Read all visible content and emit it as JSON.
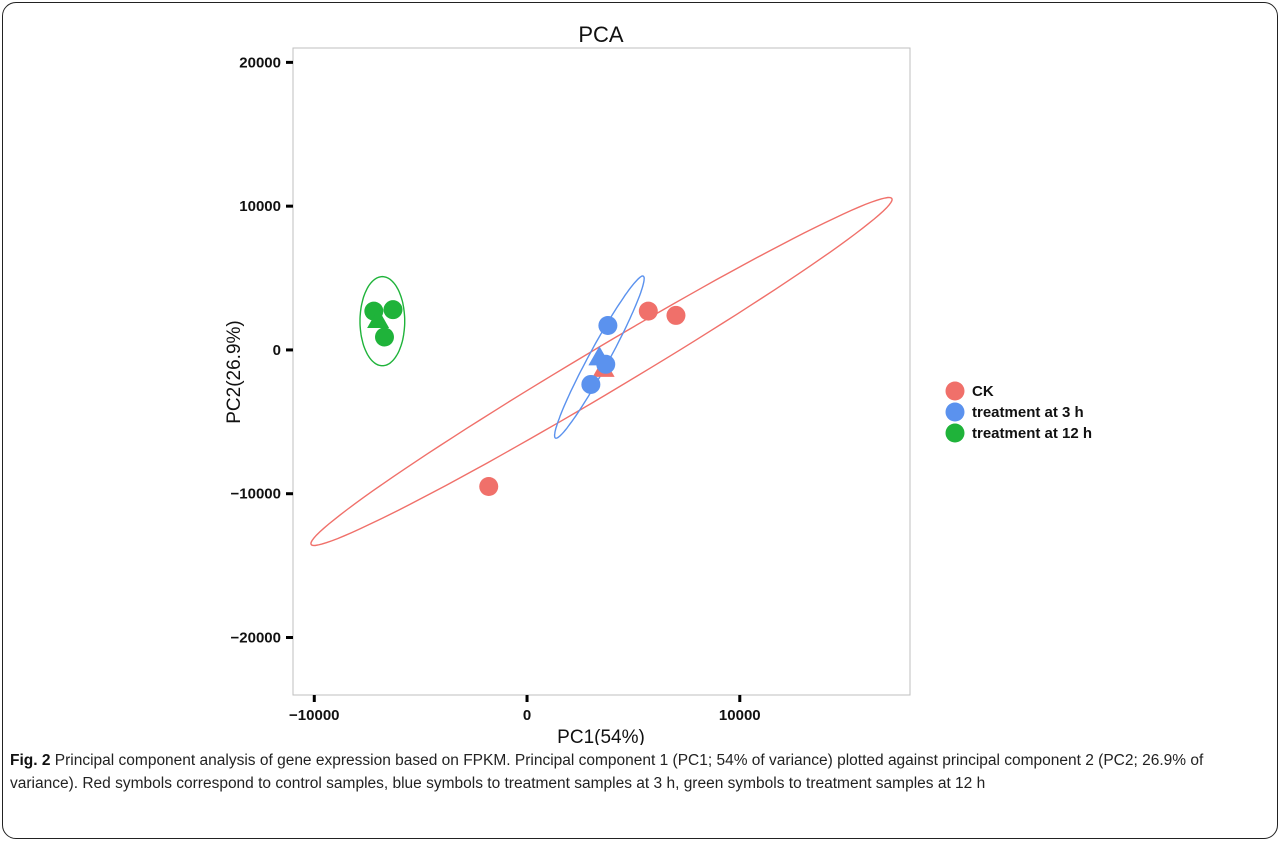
{
  "chart_data": {
    "type": "scatter",
    "title": "PCA",
    "xlabel": "PC1(54%)",
    "ylabel": "PC2(26.9%)",
    "xlim": [
      -11000,
      18000
    ],
    "ylim": [
      -24000,
      21000
    ],
    "xticks": [
      -10000,
      0,
      10000
    ],
    "xtick_labels": [
      "−10000",
      "0",
      "10000"
    ],
    "yticks": [
      -20000,
      -10000,
      0,
      10000,
      20000
    ],
    "ytick_labels": [
      "−20000",
      "−10000",
      "0",
      "10000",
      "20000"
    ],
    "grid": false,
    "legend_position": "right",
    "series": [
      {
        "name": "CK",
        "color": "#f0706a",
        "points": [
          {
            "x": 5700,
            "y": 2700,
            "shape": "circle"
          },
          {
            "x": 7000,
            "y": 2400,
            "shape": "circle"
          },
          {
            "x": -1800,
            "y": -9500,
            "shape": "circle"
          },
          {
            "x": 3600,
            "y": -1300,
            "shape": "triangle"
          }
        ],
        "ellipse": {
          "cx": 3500,
          "cy": -1500,
          "rx": 18200,
          "ry": 1350,
          "angle_deg": 41.5
        }
      },
      {
        "name": "treatment at 3 h",
        "color": "#5b92ee",
        "points": [
          {
            "x": 3800,
            "y": 1700,
            "shape": "circle"
          },
          {
            "x": 3400,
            "y": -500,
            "shape": "triangle"
          },
          {
            "x": 3700,
            "y": -1000,
            "shape": "circle"
          },
          {
            "x": 3000,
            "y": -2400,
            "shape": "circle"
          }
        ],
        "ellipse": {
          "cx": 3400,
          "cy": -500,
          "rx": 6000,
          "ry": 500,
          "angle_deg": 70
        }
      },
      {
        "name": "treatment at 12 h",
        "color": "#1fb33a",
        "points": [
          {
            "x": -7200,
            "y": 2700,
            "shape": "circle"
          },
          {
            "x": -6300,
            "y": 2800,
            "shape": "circle"
          },
          {
            "x": -7000,
            "y": 2100,
            "shape": "triangle"
          },
          {
            "x": -6700,
            "y": 900,
            "shape": "circle"
          }
        ],
        "ellipse": {
          "cx": -6800,
          "cy": 2000,
          "rx": 1050,
          "ry": 3100,
          "angle_deg": 0
        }
      }
    ]
  },
  "caption": {
    "label": "Fig. 2",
    "text": " Principal component analysis of gene expression based on FPKM. Principal component 1 (PC1; 54% of variance) plotted against principal component 2 (PC2; 26.9% of variance). Red symbols correspond to control samples, blue symbols to treatment samples at 3 h, green symbols to treatment samples at 12 h"
  }
}
